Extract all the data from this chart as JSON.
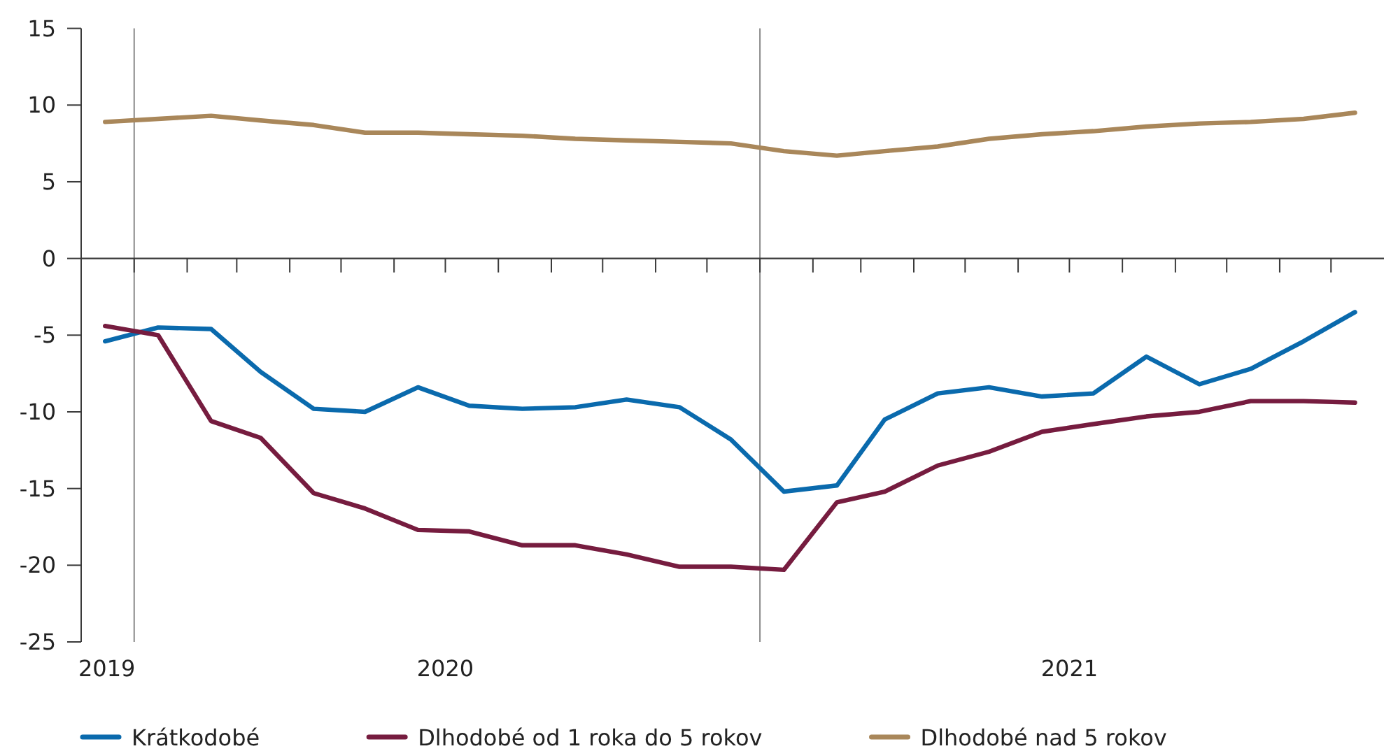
{
  "chart_data": {
    "type": "line",
    "x": [
      "2019-12-15",
      "2020-01-15",
      "2020-02-15",
      "2020-03-15",
      "2020-04-15",
      "2020-05-15",
      "2020-06-15",
      "2020-07-15",
      "2020-08-15",
      "2020-09-15",
      "2020-10-15",
      "2020-11-15",
      "2020-12-15",
      "2021-01-15",
      "2021-02-15",
      "2021-03-15",
      "2021-04-15",
      "2021-05-15",
      "2021-06-15",
      "2021-07-15",
      "2021-08-15",
      "2021-09-15",
      "2021-10-15",
      "2021-11-15",
      "2021-12-15"
    ],
    "series": [
      {
        "name": "Krátkodobé",
        "color": "#0a6aad",
        "values": [
          -5.4,
          -4.5,
          -4.6,
          -7.4,
          -9.8,
          -10.0,
          -8.4,
          -9.6,
          -9.8,
          -9.7,
          -9.2,
          -9.7,
          -11.8,
          -15.2,
          -14.8,
          -10.5,
          -8.8,
          -8.4,
          -9.0,
          -8.8,
          -6.4,
          -8.2,
          -7.2,
          -5.4,
          -3.5
        ]
      },
      {
        "name": "Dlhodobé od 1 roka do 5 rokov",
        "color": "#761c3f",
        "values": [
          -4.4,
          -5.0,
          -10.6,
          -11.7,
          -15.3,
          -16.3,
          -17.7,
          -17.8,
          -18.7,
          -18.7,
          -19.3,
          -20.1,
          -20.1,
          -20.3,
          -15.9,
          -15.2,
          -13.5,
          -12.6,
          -11.3,
          -10.8,
          -10.3,
          -10.0,
          -9.3,
          -9.3,
          -9.4
        ]
      },
      {
        "name": "Dlhodobé nad 5 rokov",
        "color": "#a9875a",
        "values": [
          8.9,
          9.1,
          9.3,
          9.0,
          8.7,
          8.2,
          8.2,
          8.1,
          8.0,
          7.8,
          7.7,
          7.6,
          7.5,
          7.0,
          6.7,
          7.0,
          7.3,
          7.8,
          8.1,
          8.3,
          8.6,
          8.8,
          8.9,
          9.1,
          9.5
        ]
      }
    ],
    "ylim": [
      -25,
      15
    ],
    "yticks": [
      -25,
      -20,
      -15,
      -10,
      -5,
      0,
      5,
      10,
      15
    ],
    "xlim": [
      "2019-12-01",
      "2022-01-01"
    ],
    "xticks": [
      {
        "value": "2019-12-16",
        "label": "2019"
      },
      {
        "value": "2020-07-01",
        "label": "2020"
      },
      {
        "value": "2021-07-01",
        "label": "2021"
      },
      {
        "value": "2020-01-01",
        "label": null
      },
      {
        "value": "2020-02-01",
        "label": null
      },
      {
        "value": "2020-03-01",
        "label": null
      },
      {
        "value": "2020-04-01",
        "label": null
      },
      {
        "value": "2020-05-01",
        "label": null
      },
      {
        "value": "2020-06-01",
        "label": null
      },
      {
        "value": "2020-07-01",
        "label": null
      },
      {
        "value": "2020-08-01",
        "label": null
      },
      {
        "value": "2020-09-01",
        "label": null
      },
      {
        "value": "2020-10-01",
        "label": null
      },
      {
        "value": "2020-11-01",
        "label": null
      },
      {
        "value": "2020-12-01",
        "label": null
      },
      {
        "value": "2021-01-01",
        "label": null
      },
      {
        "value": "2021-02-01",
        "label": null
      },
      {
        "value": "2021-03-01",
        "label": null
      },
      {
        "value": "2021-04-01",
        "label": null
      },
      {
        "value": "2021-05-01",
        "label": null
      },
      {
        "value": "2021-06-01",
        "label": null
      },
      {
        "value": "2021-07-01",
        "label": null
      },
      {
        "value": "2021-08-01",
        "label": null
      },
      {
        "value": "2021-09-01",
        "label": null
      },
      {
        "value": "2021-10-01",
        "label": null
      },
      {
        "value": "2021-11-01",
        "label": null
      },
      {
        "value": "2021-12-01",
        "label": null
      }
    ],
    "ref_lines": [
      {
        "axis": "x",
        "value": "2020-01-01",
        "label": null,
        "color": "#8a8a8a"
      },
      {
        "axis": "x",
        "value": "2021-01-01",
        "label": null,
        "color": "#8a8a8a"
      }
    ],
    "legend": "bottom"
  }
}
